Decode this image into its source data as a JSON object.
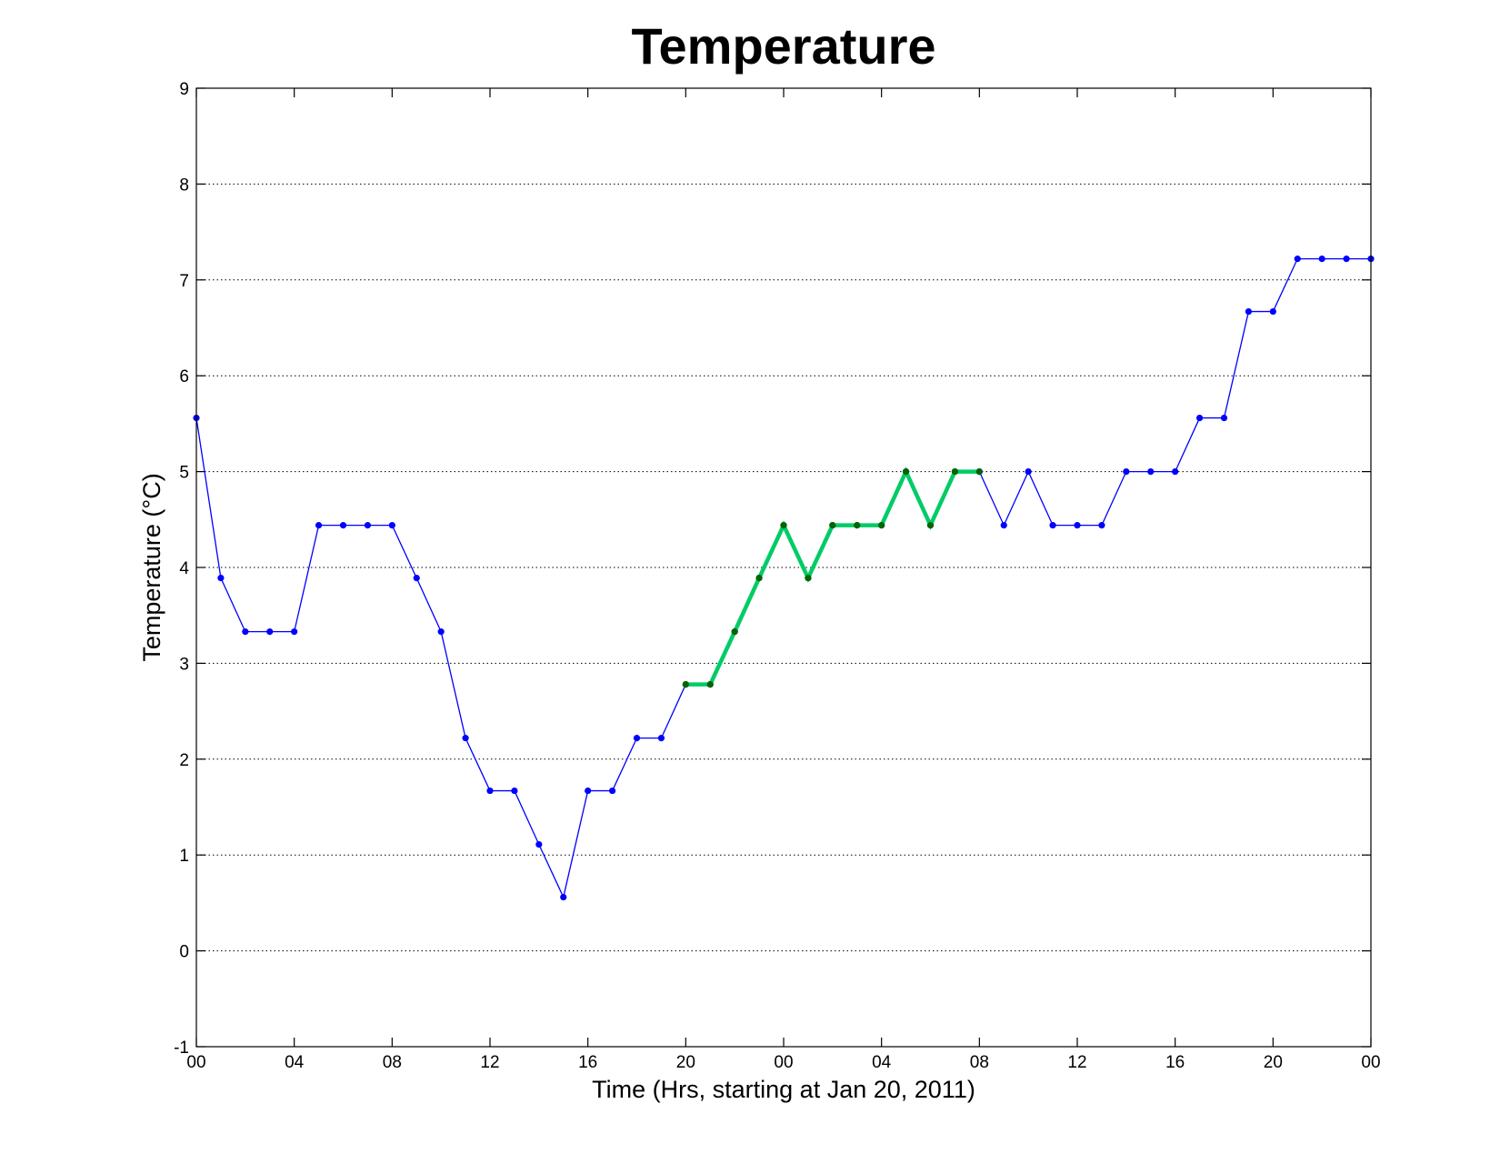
{
  "chart_data": {
    "type": "line",
    "title": "Temperature",
    "xlabel": "Time (Hrs, starting at Jan 20, 2011)",
    "ylabel": "Temperature (°C)",
    "xlim": [
      0,
      48
    ],
    "ylim": [
      -1,
      9
    ],
    "grid": "y-dotted",
    "legend": "none",
    "x_tick_labels": [
      "00",
      "04",
      "08",
      "12",
      "16",
      "20",
      "00",
      "04",
      "08",
      "12",
      "16",
      "20",
      "00"
    ],
    "y_tick_labels": [
      "-1",
      "0",
      "1",
      "2",
      "3",
      "4",
      "5",
      "6",
      "7",
      "8",
      "9"
    ],
    "series": [
      {
        "color": "#0000ff",
        "marker_color": "#0000ff",
        "x": [
          0,
          1,
          2,
          3,
          4,
          5,
          6,
          7,
          8,
          9,
          10,
          11,
          12,
          13,
          14,
          15,
          16,
          17,
          18,
          19,
          20,
          21,
          22,
          23,
          24,
          25,
          26,
          27,
          28,
          29,
          30,
          31,
          32,
          33,
          34,
          35,
          36,
          37,
          38,
          39,
          40,
          41,
          42,
          43,
          44,
          45,
          46,
          47,
          48
        ],
        "y": [
          5.56,
          3.89,
          3.33,
          3.33,
          3.33,
          4.44,
          4.44,
          4.44,
          4.44,
          3.89,
          3.33,
          2.22,
          1.67,
          1.67,
          1.11,
          0.56,
          1.67,
          1.67,
          2.22,
          2.22,
          2.78,
          2.78,
          3.33,
          3.89,
          4.44,
          3.89,
          4.44,
          4.44,
          4.44,
          5.0,
          4.44,
          5.0,
          5.0,
          4.44,
          5.0,
          4.44,
          4.44,
          4.44,
          5.0,
          5.0,
          5.0,
          5.56,
          5.56,
          6.67,
          6.67,
          7.22,
          7.22,
          7.22,
          7.22
        ]
      },
      {
        "color": "#00cc66",
        "marker_color": "#006600",
        "x": [
          20,
          21,
          22,
          23,
          24,
          25,
          26,
          27,
          28,
          29,
          30,
          31,
          32
        ],
        "y": [
          2.78,
          2.78,
          3.33,
          3.89,
          4.44,
          3.89,
          4.44,
          4.44,
          4.44,
          5.0,
          4.44,
          5.0,
          5.0
        ]
      }
    ]
  }
}
